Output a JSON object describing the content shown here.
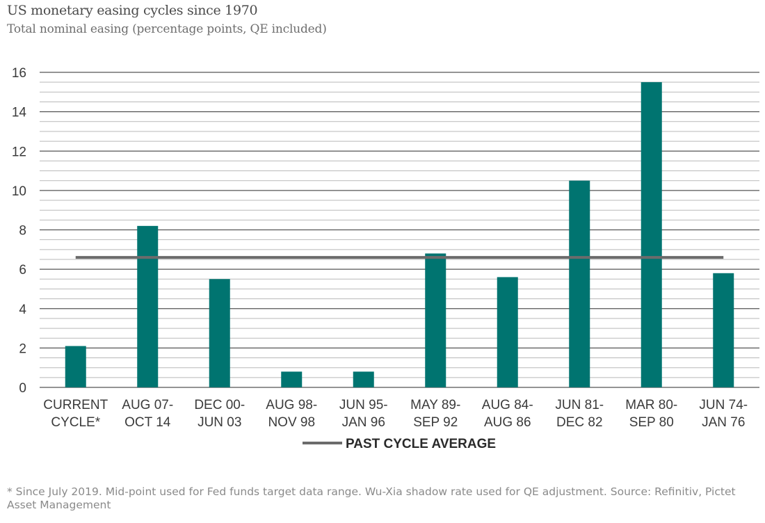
{
  "title": "US monetary easing cycles since 1970",
  "subtitle": "Total nominal easing (percentage points, QE included)",
  "footnote": "* Since July 2019. Mid-point used for Fed funds target data range. Wu-Xia shadow rate used for QE adjustment. Source: Refinitiv, Pictet Asset Management",
  "colors": {
    "bar": "#007470",
    "average_line": "#6b6b6b",
    "major_grid": "#555555",
    "minor_grid": "#b9b9b9",
    "text": "#3a3a3a"
  },
  "chart_data": {
    "type": "bar",
    "categories": [
      [
        "CURRENT",
        "CYCLE*"
      ],
      [
        "AUG 07-",
        "OCT 14"
      ],
      [
        "DEC 00-",
        "JUN 03"
      ],
      [
        "AUG 98-",
        "NOV 98"
      ],
      [
        "JUN 95-",
        "JAN 96"
      ],
      [
        "MAY 89-",
        "SEP 92"
      ],
      [
        "AUG 84-",
        "AUG 86"
      ],
      [
        "JUN 81-",
        "DEC 82"
      ],
      [
        "MAR 80-",
        "SEP 80"
      ],
      [
        "JUN 74-",
        "JAN 76"
      ]
    ],
    "values": [
      2.1,
      8.2,
      5.5,
      0.8,
      0.8,
      6.8,
      5.6,
      10.5,
      15.5,
      5.8
    ],
    "reference_line": {
      "name": "PAST CYCLE AVERAGE",
      "value": 6.6
    },
    "yticks": [
      0,
      2,
      4,
      6,
      8,
      10,
      12,
      14,
      16
    ],
    "ylim": [
      0,
      16
    ],
    "minor_grid_step": 0.5,
    "grid": true,
    "legend_position": "bottom-center"
  }
}
